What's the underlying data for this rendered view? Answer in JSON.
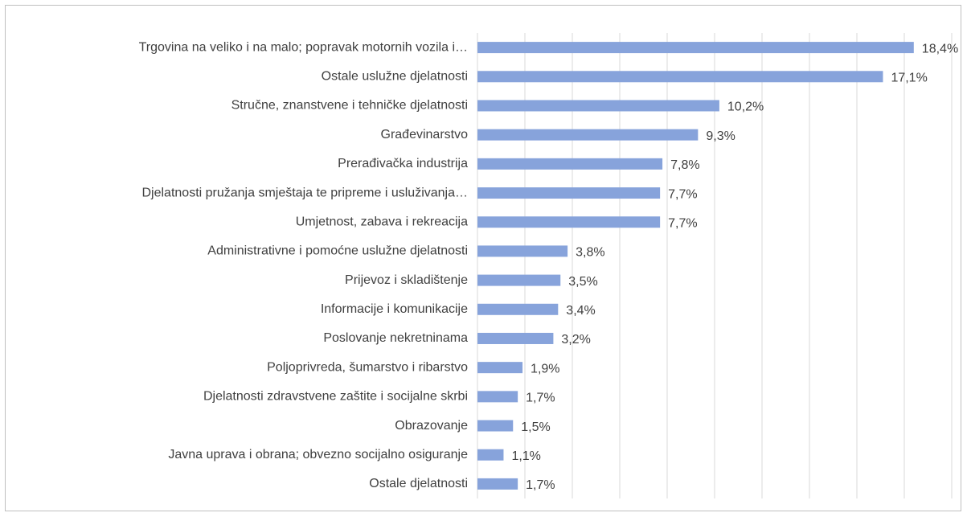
{
  "chart_data": {
    "type": "bar",
    "orientation": "horizontal",
    "categories": [
      "Trgovina na veliko i na malo; popravak motornih vozila i…",
      "Ostale uslužne djelatnosti",
      "Stručne, znanstvene i tehničke djelatnosti",
      "Građevinarstvo",
      "Prerađivačka industrija",
      "Djelatnosti pružanja smještaja te pripreme i usluživanja…",
      "Umjetnost, zabava i rekreacija",
      "Administrativne i pomoćne uslužne djelatnosti",
      "Prijevoz i skladištenje",
      "Informacije i komunikacije",
      "Poslovanje nekretninama",
      "Poljoprivreda, šumarstvo i ribarstvo",
      "Djelatnosti zdravstvene zaštite i socijalne skrbi",
      "Obrazovanje",
      "Javna uprava i obrana; obvezno socijalno osiguranje",
      "Ostale djelatnosti"
    ],
    "values": [
      18.4,
      17.1,
      10.2,
      9.3,
      7.8,
      7.7,
      7.7,
      3.8,
      3.5,
      3.4,
      3.2,
      1.9,
      1.7,
      1.5,
      1.1,
      1.7
    ],
    "value_labels": [
      "18,4%",
      "17,1%",
      "10,2%",
      "9,3%",
      "7,8%",
      "7,7%",
      "7,7%",
      "3,8%",
      "3,5%",
      "3,4%",
      "3,2%",
      "1,9%",
      "1,7%",
      "1,5%",
      "1,1%",
      "1,7%"
    ],
    "color": "#87a3db",
    "xlim": [
      0,
      20
    ],
    "xticks": [
      0,
      2,
      4,
      6,
      8,
      10,
      12,
      14,
      16,
      18,
      20
    ],
    "grid": true
  }
}
